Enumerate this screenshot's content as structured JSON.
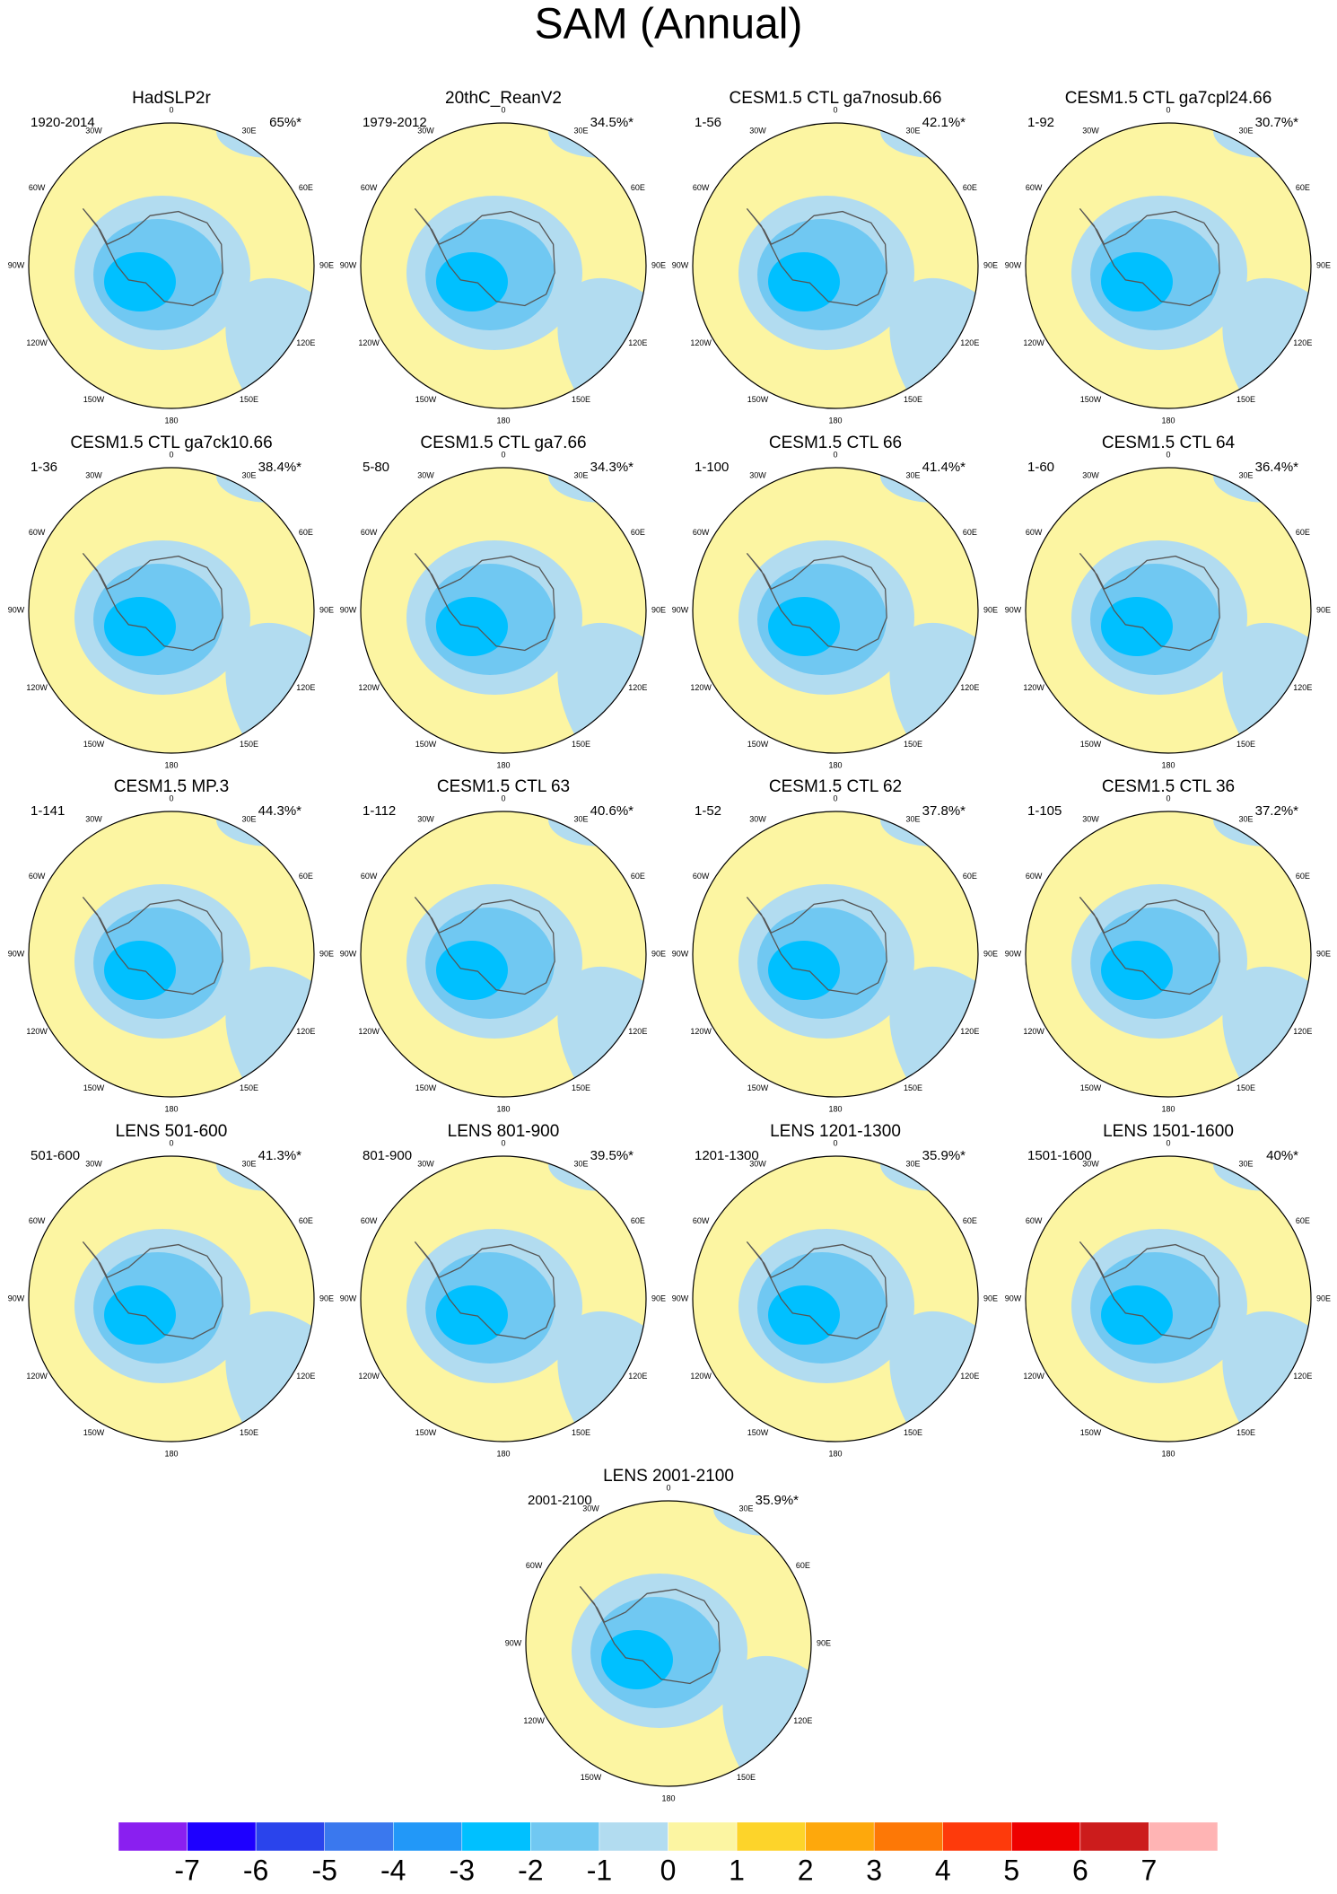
{
  "title": "SAM (Annual)",
  "lon_labels": [
    "0",
    "30E",
    "60E",
    "90E",
    "120E",
    "150E",
    "180",
    "150W",
    "120W",
    "90W",
    "60W",
    "30W"
  ],
  "panels": [
    {
      "title": "HadSLP2r",
      "period": "1920-2014",
      "variance": "65%*"
    },
    {
      "title": "20thC_ReanV2",
      "period": "1979-2012",
      "variance": "34.5%*"
    },
    {
      "title": "CESM1.5 CTL ga7nosub.66",
      "period": "1-56",
      "variance": "42.1%*"
    },
    {
      "title": "CESM1.5 CTL ga7cpl24.66",
      "period": "1-92",
      "variance": "30.7%*"
    },
    {
      "title": "CESM1.5 CTL ga7ck10.66",
      "period": "1-36",
      "variance": "38.4%*"
    },
    {
      "title": "CESM1.5 CTL ga7.66",
      "period": "5-80",
      "variance": "34.3%*"
    },
    {
      "title": "CESM1.5 CTL 66",
      "period": "1-100",
      "variance": "41.4%*"
    },
    {
      "title": "CESM1.5 CTL 64",
      "period": "1-60",
      "variance": "36.4%*"
    },
    {
      "title": "CESM1.5 MP.3",
      "period": "1-141",
      "variance": "44.3%*"
    },
    {
      "title": "CESM1.5 CTL 63",
      "period": "1-112",
      "variance": "40.6%*"
    },
    {
      "title": "CESM1.5 CTL 62",
      "period": "1-52",
      "variance": "37.8%*"
    },
    {
      "title": "CESM1.5 CTL 36",
      "period": "1-105",
      "variance": "37.2%*"
    },
    {
      "title": "LENS 501-600",
      "period": "501-600",
      "variance": "41.3%*"
    },
    {
      "title": "LENS 801-900",
      "period": "801-900",
      "variance": "39.5%*"
    },
    {
      "title": "LENS 1201-1300",
      "period": "1201-1300",
      "variance": "35.9%*"
    },
    {
      "title": "LENS 1501-1600",
      "period": "1501-1600",
      "variance": "40%*"
    },
    {
      "title": "LENS 2001-2100",
      "period": "2001-2100",
      "variance": "35.9%*"
    }
  ],
  "colorbar": {
    "levels": [
      -7,
      -6,
      -5,
      -4,
      -3,
      -2,
      -1,
      0,
      1,
      2,
      3,
      4,
      5,
      6,
      7
    ],
    "colors": [
      "#8a1ff0",
      "#1e00ff",
      "#2a44ec",
      "#3a78ee",
      "#2298f8",
      "#00c0ff",
      "#70c8f2",
      "#b2dcf0",
      "#fcf5a2",
      "#fdd42a",
      "#fea80c",
      "#fd7806",
      "#fe3a0b",
      "#ee0000",
      "#cc1c1c",
      "#ffb4b4"
    ]
  }
}
